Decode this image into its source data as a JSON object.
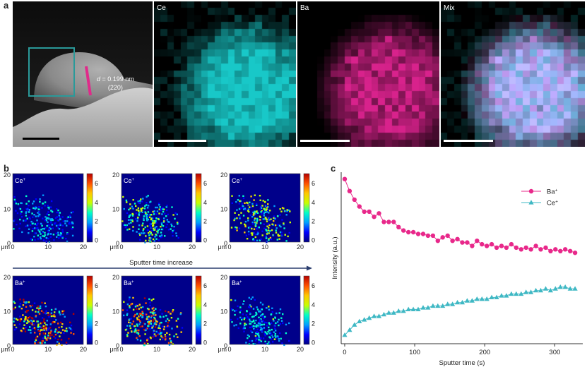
{
  "panel_a": {
    "letter": "a",
    "annotation": {
      "d_prefix": "d",
      "d_value": " = 0.199 nm",
      "plane": "(220)"
    },
    "maps": [
      {
        "label": "Ce",
        "color": "#18c8c8"
      },
      {
        "label": "Ba",
        "color": "#d8228c"
      },
      {
        "label": "Mix",
        "color": "#b48cd8"
      }
    ]
  },
  "panel_b": {
    "letter": "b",
    "unit": "μm",
    "y_ticks": [
      "20",
      "10",
      "0"
    ],
    "x_ticks": [
      "0",
      "10",
      "20"
    ],
    "colorbar_ticks": [
      "6",
      "4",
      "2",
      "0"
    ],
    "rows": [
      {
        "label": "Ce",
        "sup": "+"
      },
      {
        "label": "Ba",
        "sup": "+"
      }
    ],
    "arrow_label": "Sputter time increase"
  },
  "panel_c": {
    "letter": "c",
    "chart_data": {
      "type": "line",
      "xlabel": "Sputter time (s)",
      "ylabel": "Intensity (a.u.)",
      "xlim": [
        -5,
        340
      ],
      "ylim": [
        0,
        1
      ],
      "x_ticks": [
        0,
        100,
        200,
        300
      ],
      "legend_position": "top-right",
      "series": [
        {
          "name": "Ba",
          "sup": "+",
          "color": "#e8288a",
          "marker": "circle",
          "x": [
            0,
            7,
            14,
            21,
            28,
            35,
            42,
            49,
            56,
            63,
            70,
            77,
            84,
            91,
            98,
            105,
            112,
            119,
            126,
            133,
            140,
            147,
            154,
            161,
            168,
            175,
            182,
            189,
            196,
            203,
            210,
            217,
            224,
            231,
            238,
            245,
            252,
            259,
            266,
            273,
            280,
            287,
            294,
            301,
            308,
            315,
            322,
            329
          ],
          "y": [
            0.96,
            0.89,
            0.84,
            0.8,
            0.77,
            0.77,
            0.74,
            0.76,
            0.71,
            0.71,
            0.71,
            0.68,
            0.66,
            0.65,
            0.65,
            0.64,
            0.64,
            0.63,
            0.63,
            0.6,
            0.62,
            0.63,
            0.6,
            0.61,
            0.59,
            0.59,
            0.57,
            0.6,
            0.58,
            0.57,
            0.58,
            0.56,
            0.57,
            0.56,
            0.58,
            0.56,
            0.55,
            0.56,
            0.55,
            0.57,
            0.55,
            0.56,
            0.54,
            0.55,
            0.54,
            0.55,
            0.54,
            0.53
          ]
        },
        {
          "name": "Ce",
          "sup": "+",
          "color": "#3fb8c4",
          "marker": "triangle",
          "x": [
            0,
            7,
            14,
            21,
            28,
            35,
            42,
            49,
            56,
            63,
            70,
            77,
            84,
            91,
            98,
            105,
            112,
            119,
            126,
            133,
            140,
            147,
            154,
            161,
            168,
            175,
            182,
            189,
            196,
            203,
            210,
            217,
            224,
            231,
            238,
            245,
            252,
            259,
            266,
            273,
            280,
            287,
            294,
            301,
            308,
            315,
            322,
            329
          ],
          "y": [
            0.05,
            0.08,
            0.11,
            0.13,
            0.14,
            0.15,
            0.16,
            0.16,
            0.17,
            0.18,
            0.18,
            0.19,
            0.19,
            0.2,
            0.2,
            0.2,
            0.21,
            0.21,
            0.22,
            0.22,
            0.22,
            0.23,
            0.23,
            0.24,
            0.24,
            0.25,
            0.25,
            0.26,
            0.26,
            0.26,
            0.27,
            0.27,
            0.28,
            0.28,
            0.29,
            0.29,
            0.29,
            0.3,
            0.3,
            0.31,
            0.31,
            0.32,
            0.31,
            0.32,
            0.33,
            0.33,
            0.32,
            0.32
          ]
        }
      ]
    }
  }
}
